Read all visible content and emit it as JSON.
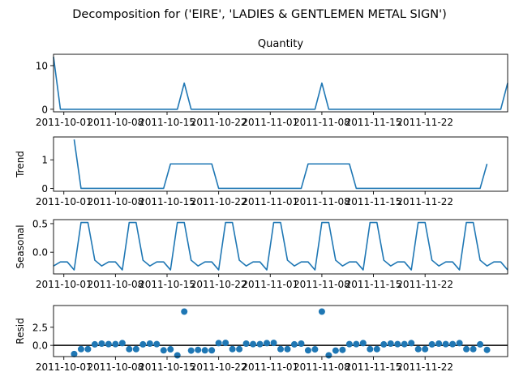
{
  "chart_data": {
    "type": "line",
    "title": "Decomposition for ('EIRE', 'LADIES & GENTLEMEN METAL SIGN')",
    "x_tick_labels": [
      "2011-10-01",
      "2011-10-08",
      "2011-10-15",
      "2011-10-22",
      "2011-11-01",
      "2011-11-08",
      "2011-11-15",
      "2011-11-22"
    ],
    "x_ticks_day_index": [
      3,
      18,
      33,
      48,
      63,
      78,
      93,
      108
    ],
    "n_points": 67,
    "panels": [
      {
        "name": "Quantity",
        "kind": "line",
        "title": "Quantity",
        "ylabel": "",
        "ylim": [
          -0.6,
          12.6
        ],
        "yticks": [
          0,
          10
        ],
        "ytick_labels": [
          "0",
          "10"
        ],
        "values": [
          12,
          0,
          0,
          0,
          0,
          0,
          0,
          0,
          0,
          0,
          0,
          0,
          0,
          0,
          0,
          0,
          0,
          0,
          0,
          6,
          0,
          0,
          0,
          0,
          0,
          0,
          0,
          0,
          0,
          0,
          0,
          0,
          0,
          0,
          0,
          0,
          0,
          0,
          0,
          6,
          0,
          0,
          0,
          0,
          0,
          0,
          0,
          0,
          0,
          0,
          0,
          0,
          0,
          0,
          0,
          0,
          0,
          0,
          0,
          0,
          0,
          0,
          0,
          0,
          0,
          0,
          6
        ]
      },
      {
        "name": "Trend",
        "kind": "line",
        "title": "",
        "ylabel": "Trend",
        "ylim": [
          -0.1,
          1.8
        ],
        "yticks": [
          0,
          1
        ],
        "ytick_labels": [
          "0",
          "1"
        ],
        "values": [
          null,
          null,
          null,
          1.71,
          0,
          0,
          0,
          0,
          0,
          0,
          0,
          0,
          0,
          0,
          0,
          0,
          0,
          0.857,
          0.857,
          0.857,
          0.857,
          0.857,
          0.857,
          0.857,
          0,
          0,
          0,
          0,
          0,
          0,
          0,
          0,
          0,
          0,
          0,
          0,
          0,
          0.857,
          0.857,
          0.857,
          0.857,
          0.857,
          0.857,
          0.857,
          0,
          0,
          0,
          0,
          0,
          0,
          0,
          0,
          0,
          0,
          0,
          0,
          0,
          0,
          0,
          0,
          0,
          0,
          0,
          0.857,
          null,
          null,
          null
        ]
      },
      {
        "name": "Seasonal",
        "kind": "line",
        "title": "",
        "ylabel": "Seasonal",
        "ylim": [
          -0.38,
          0.57
        ],
        "yticks": [
          0.0,
          0.5
        ],
        "ytick_labels": [
          "0.0",
          "0.5"
        ],
        "values": [
          -0.24,
          -0.17,
          -0.17,
          -0.31,
          0.52,
          0.52,
          -0.14,
          -0.24,
          -0.17,
          -0.17,
          -0.31,
          0.52,
          0.52,
          -0.14,
          -0.24,
          -0.17,
          -0.17,
          -0.31,
          0.52,
          0.52,
          -0.14,
          -0.24,
          -0.17,
          -0.17,
          -0.31,
          0.52,
          0.52,
          -0.14,
          -0.24,
          -0.17,
          -0.17,
          -0.31,
          0.52,
          0.52,
          -0.14,
          -0.24,
          -0.17,
          -0.17,
          -0.31,
          0.52,
          0.52,
          -0.14,
          -0.24,
          -0.17,
          -0.17,
          -0.31,
          0.52,
          0.52,
          -0.14,
          -0.24,
          -0.17,
          -0.17,
          -0.31,
          0.52,
          0.52,
          -0.14,
          -0.24,
          -0.17,
          -0.17,
          -0.31,
          0.52,
          0.52,
          -0.14,
          -0.24,
          -0.17,
          -0.17,
          -0.31
        ]
      },
      {
        "name": "Resid",
        "kind": "scatter",
        "title": "",
        "ylabel": "Resid",
        "ylim": [
          -1.55,
          5.5
        ],
        "yticks": [
          0.0,
          2.5
        ],
        "ytick_labels": [
          "0.0",
          "2.5"
        ],
        "values": [
          null,
          null,
          null,
          -1.2,
          -0.52,
          -0.52,
          0.14,
          0.24,
          0.17,
          0.17,
          0.31,
          -0.52,
          -0.52,
          0.14,
          0.24,
          0.17,
          -0.69,
          -0.55,
          -1.38,
          4.66,
          -0.72,
          -0.62,
          -0.69,
          -0.69,
          0.31,
          0.34,
          -0.52,
          -0.52,
          0.24,
          0.17,
          0.17,
          0.31,
          0.34,
          -0.52,
          -0.52,
          0.14,
          0.24,
          -0.69,
          -0.55,
          4.66,
          -1.38,
          -0.72,
          -0.62,
          0.17,
          0.17,
          0.31,
          -0.52,
          -0.52,
          0.14,
          0.24,
          0.17,
          0.17,
          0.31,
          -0.52,
          -0.52,
          0.14,
          0.24,
          0.17,
          0.17,
          0.31,
          -0.52,
          -0.52,
          0.14,
          -0.62,
          null,
          null,
          null
        ]
      }
    ],
    "line_color": "#1f77b4"
  }
}
